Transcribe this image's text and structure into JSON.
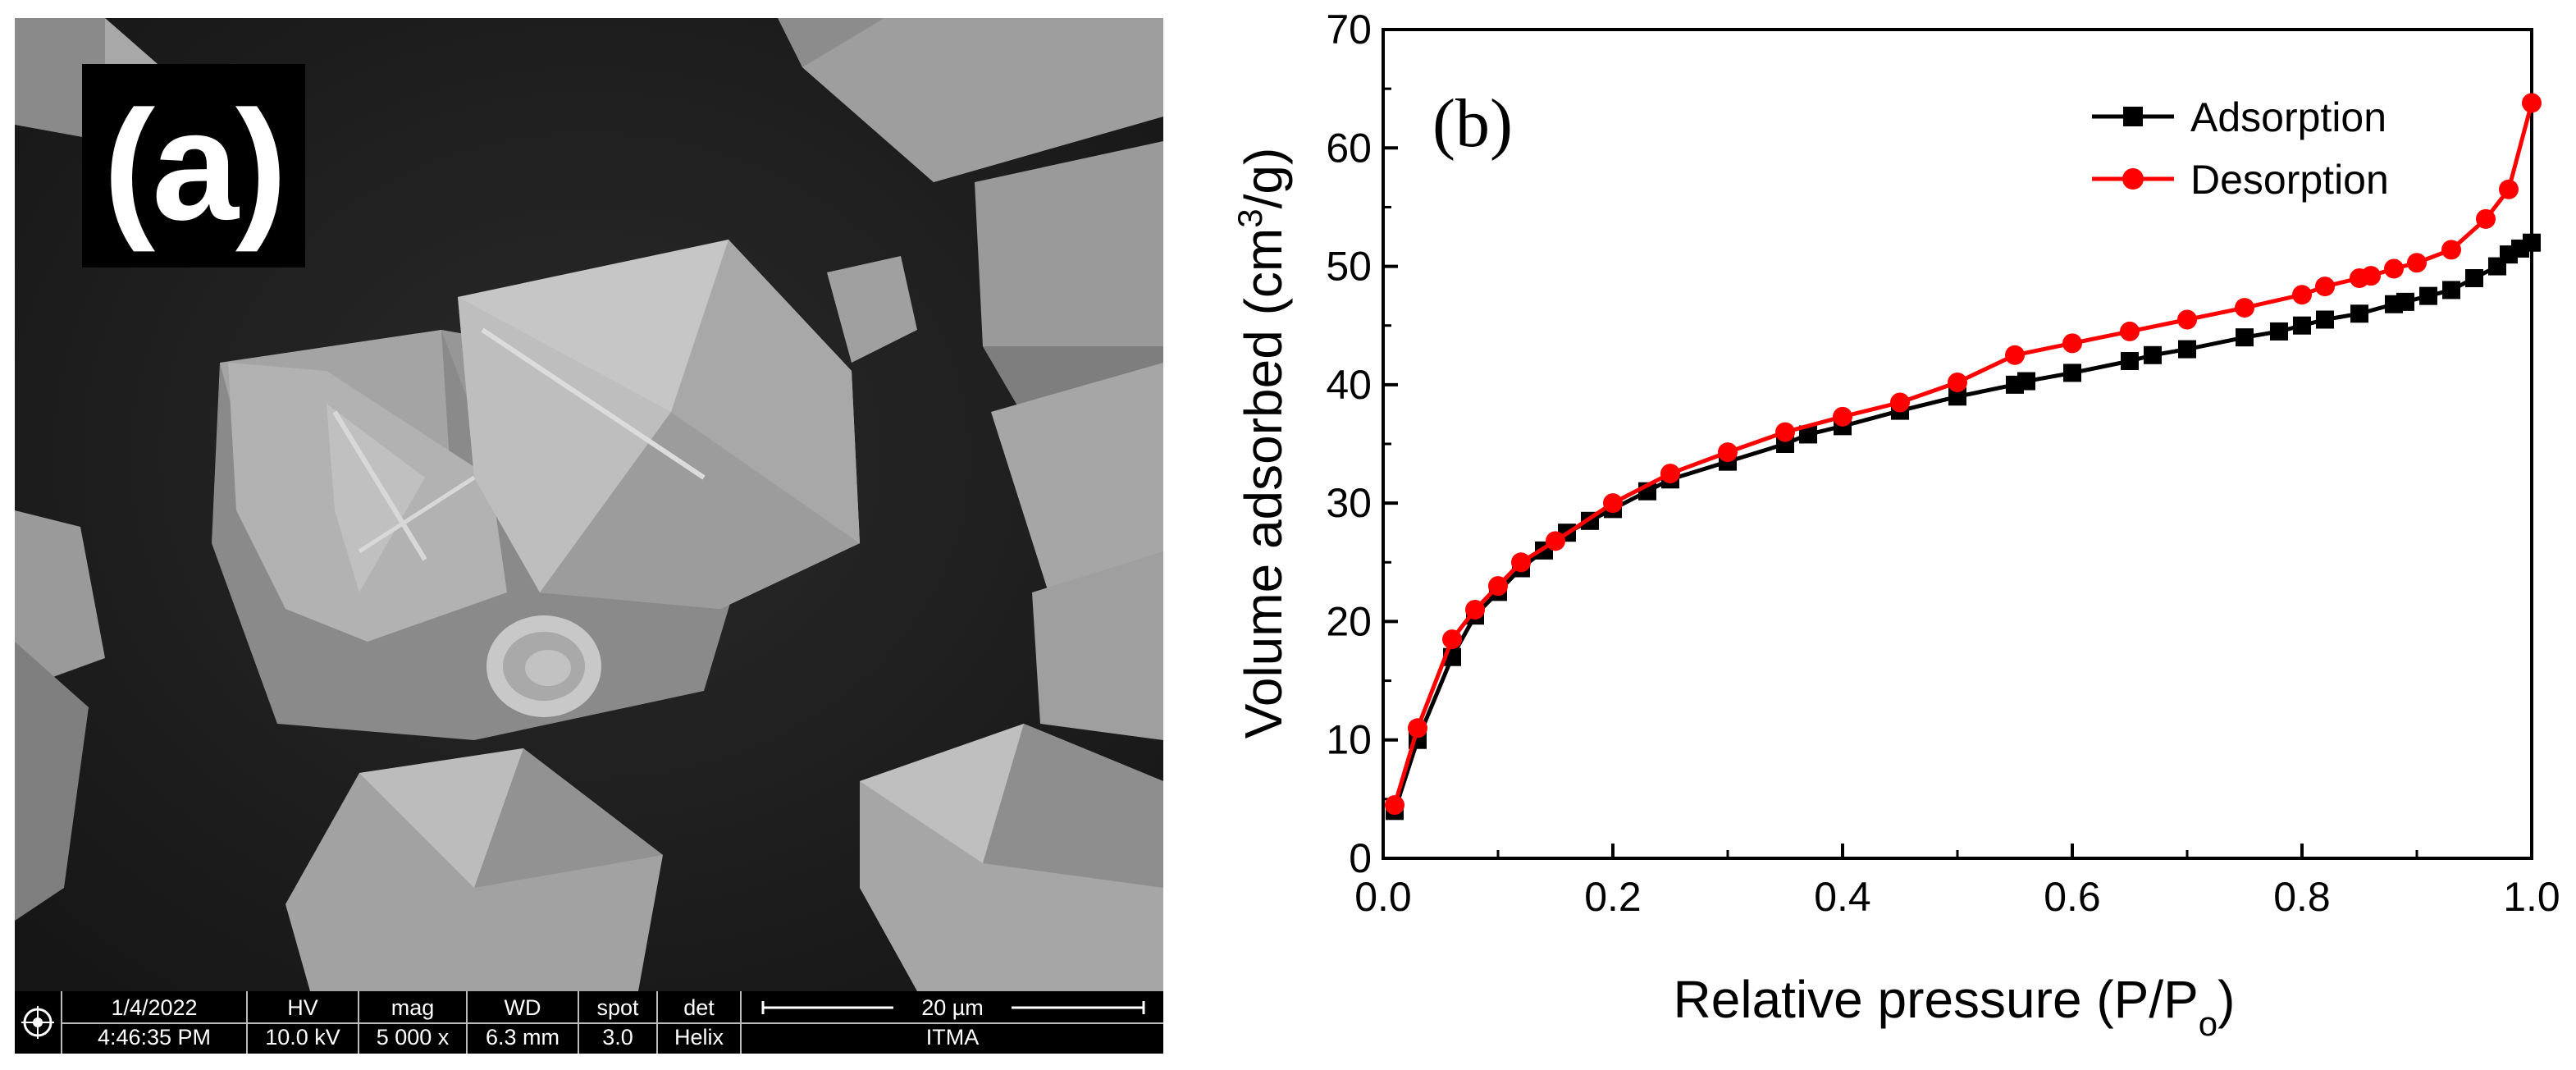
{
  "panel_a": {
    "label": "(a)",
    "info_bar": {
      "date": "1/4/2022",
      "time": "4:46:35 PM",
      "hv_label": "HV",
      "hv_value": "10.0 kV",
      "mag_label": "mag",
      "mag_value": "5 000 x",
      "wd_label": "WD",
      "wd_value": "6.3 mm",
      "spot_label": "spot",
      "spot_value": "3.0",
      "det_label": "det",
      "det_value": "Helix",
      "scale_label": "20 µm",
      "institution": "ITMA"
    },
    "colors": {
      "background": "#1c1c1c",
      "crystal_light": "#b4b4b4",
      "crystal_mid": "#8f8f8f",
      "crystal_dark": "#6a6a6a"
    }
  },
  "chart_data": {
    "type": "line",
    "panel_label": "(b)",
    "xlabel": "Relative pressure (P/P",
    "xlabel_sub": "o",
    "xlabel_end": ")",
    "ylabel": "Volume adsorbed (cm",
    "ylabel_sup": "3",
    "ylabel_end": "/g)",
    "xlim": [
      0.0,
      1.0
    ],
    "ylim": [
      0,
      70
    ],
    "xticks": [
      "0.0",
      "0.2",
      "0.4",
      "0.6",
      "0.8",
      "1.0"
    ],
    "yticks": [
      "0",
      "10",
      "20",
      "30",
      "40",
      "50",
      "60",
      "70"
    ],
    "legend_position": "top-right",
    "series": [
      {
        "name": "Adsorption",
        "color": "#000000",
        "marker": "square",
        "x": [
          0.01,
          0.03,
          0.06,
          0.08,
          0.1,
          0.12,
          0.14,
          0.16,
          0.18,
          0.2,
          0.23,
          0.25,
          0.3,
          0.35,
          0.37,
          0.4,
          0.45,
          0.5,
          0.55,
          0.56,
          0.6,
          0.65,
          0.67,
          0.7,
          0.75,
          0.78,
          0.8,
          0.82,
          0.85,
          0.88,
          0.89,
          0.91,
          0.93,
          0.95,
          0.97,
          0.98,
          0.99,
          1.0
        ],
        "y": [
          4.0,
          10.0,
          17.0,
          20.5,
          22.5,
          24.5,
          26.0,
          27.5,
          28.5,
          29.5,
          31.0,
          32.0,
          33.5,
          35.0,
          35.8,
          36.5,
          37.8,
          39.0,
          40.0,
          40.3,
          41.0,
          42.0,
          42.5,
          43.0,
          44.0,
          44.5,
          45.0,
          45.5,
          46.0,
          46.8,
          47.0,
          47.5,
          48.0,
          49.0,
          50.0,
          51.0,
          51.5,
          52.0
        ]
      },
      {
        "name": "Desorption",
        "color": "#ff0000",
        "marker": "circle",
        "x": [
          0.01,
          0.03,
          0.06,
          0.08,
          0.1,
          0.12,
          0.15,
          0.2,
          0.25,
          0.3,
          0.35,
          0.4,
          0.45,
          0.5,
          0.55,
          0.6,
          0.65,
          0.7,
          0.75,
          0.8,
          0.82,
          0.85,
          0.86,
          0.88,
          0.9,
          0.93,
          0.96,
          0.98,
          1.0
        ],
        "y": [
          4.5,
          11.0,
          18.5,
          21.0,
          23.0,
          25.0,
          26.8,
          30.0,
          32.5,
          34.3,
          36.0,
          37.3,
          38.5,
          40.2,
          42.5,
          43.5,
          44.5,
          45.5,
          46.5,
          47.6,
          48.3,
          49.0,
          49.2,
          49.8,
          50.3,
          51.4,
          54.0,
          56.5,
          63.8
        ]
      }
    ]
  }
}
